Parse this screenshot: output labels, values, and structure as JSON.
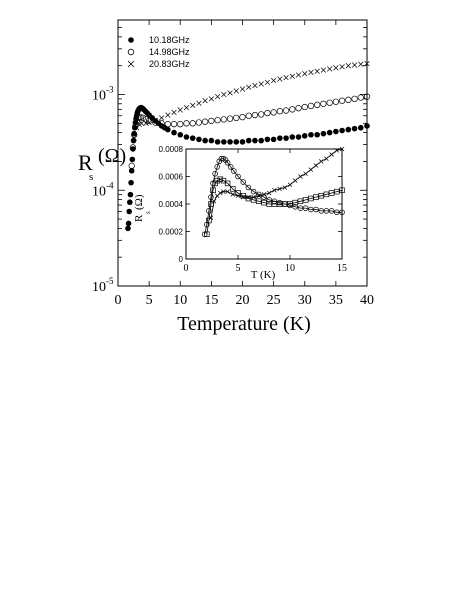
{
  "chart_data": [
    {
      "type": "scatter",
      "xlabel": "Temperature (K)",
      "ylabel": {
        "main": "R",
        "sub": "s",
        "unit": "(Ω)"
      },
      "xlim": [
        0,
        40
      ],
      "ylim": [
        1e-05,
        0.006
      ],
      "y_scale": "log",
      "xticks": [
        0,
        5,
        10,
        15,
        20,
        25,
        30,
        35,
        40
      ],
      "yticks": [
        {
          "value": 1e-05,
          "base": "10",
          "exp": "-5"
        },
        {
          "value": 0.0001,
          "base": "10",
          "exp": "-4"
        },
        {
          "value": 0.001,
          "base": "10",
          "exp": "-3"
        }
      ],
      "legend_position": "top-left",
      "series": [
        {
          "name": "10.18GHz",
          "marker": "filled-circle",
          "points": [
            [
              1.6,
              4e-05
            ],
            [
              1.7,
              4.5e-05
            ],
            [
              1.8,
              6e-05
            ],
            [
              1.9,
              7.5e-05
            ],
            [
              2.0,
              9e-05
            ],
            [
              2.1,
              0.00012
            ],
            [
              2.2,
              0.00016
            ],
            [
              2.3,
              0.00021
            ],
            [
              2.4,
              0.00027
            ],
            [
              2.5,
              0.00033
            ],
            [
              2.6,
              0.00039
            ],
            [
              2.7,
              0.00045
            ],
            [
              2.8,
              0.00051
            ],
            [
              2.9,
              0.00056
            ],
            [
              3.0,
              0.0006
            ],
            [
              3.1,
              0.00064
            ],
            [
              3.2,
              0.00067
            ],
            [
              3.35,
              0.0007
            ],
            [
              3.5,
              0.00072
            ],
            [
              3.7,
              0.00073
            ],
            [
              3.9,
              0.00072
            ],
            [
              4.1,
              0.0007
            ],
            [
              4.4,
              0.00067
            ],
            [
              4.7,
              0.00064
            ],
            [
              5.0,
              0.00061
            ],
            [
              5.5,
              0.00057
            ],
            [
              6,
              0.00053
            ],
            [
              6.5,
              0.0005
            ],
            [
              7,
              0.00047
            ],
            [
              7.5,
              0.00045
            ],
            [
              8,
              0.00043
            ],
            [
              9,
              0.0004
            ],
            [
              10,
              0.00038
            ],
            [
              11,
              0.00036
            ],
            [
              12,
              0.00035
            ],
            [
              13,
              0.00034
            ],
            [
              14,
              0.00033
            ],
            [
              15,
              0.00033
            ],
            [
              16,
              0.00032
            ],
            [
              17,
              0.00032
            ],
            [
              18,
              0.00032
            ],
            [
              19,
              0.00032
            ],
            [
              20,
              0.00032
            ],
            [
              21,
              0.00033
            ],
            [
              22,
              0.00033
            ],
            [
              23,
              0.00033
            ],
            [
              24,
              0.00034
            ],
            [
              25,
              0.00034
            ],
            [
              26,
              0.00035
            ],
            [
              27,
              0.00035
            ],
            [
              28,
              0.00036
            ],
            [
              29,
              0.00036
            ],
            [
              30,
              0.00037
            ],
            [
              31,
              0.00038
            ],
            [
              32,
              0.00038
            ],
            [
              33,
              0.00039
            ],
            [
              34,
              0.0004
            ],
            [
              35,
              0.00041
            ],
            [
              36,
              0.00042
            ],
            [
              37,
              0.00043
            ],
            [
              38,
              0.00044
            ],
            [
              39,
              0.00045
            ],
            [
              40,
              0.00047
            ]
          ]
        },
        {
          "name": "14.98GHz",
          "marker": "open-circle",
          "points": [
            [
              2.2,
              0.00018
            ],
            [
              2.4,
              0.00028
            ],
            [
              2.6,
              0.00038
            ],
            [
              2.8,
              0.00047
            ],
            [
              3.0,
              0.00053
            ],
            [
              3.3,
              0.00057
            ],
            [
              3.6,
              0.00058
            ],
            [
              4.0,
              0.00057
            ],
            [
              4.5,
              0.00055
            ],
            [
              5,
              0.00053
            ],
            [
              6,
              0.00051
            ],
            [
              7,
              0.0005
            ],
            [
              8,
              0.00049
            ],
            [
              9,
              0.00049
            ],
            [
              10,
              0.00049
            ],
            [
              11,
              0.0005
            ],
            [
              12,
              0.0005
            ],
            [
              13,
              0.00051
            ],
            [
              14,
              0.00052
            ],
            [
              15,
              0.00053
            ],
            [
              16,
              0.00054
            ],
            [
              17,
              0.00055
            ],
            [
              18,
              0.00056
            ],
            [
              19,
              0.00057
            ],
            [
              20,
              0.00058
            ],
            [
              21,
              0.0006
            ],
            [
              22,
              0.00061
            ],
            [
              23,
              0.00062
            ],
            [
              24,
              0.00064
            ],
            [
              25,
              0.00065
            ],
            [
              26,
              0.00067
            ],
            [
              27,
              0.00068
            ],
            [
              28,
              0.0007
            ],
            [
              29,
              0.00072
            ],
            [
              30,
              0.00074
            ],
            [
              31,
              0.00076
            ],
            [
              32,
              0.00078
            ],
            [
              33,
              0.0008
            ],
            [
              34,
              0.00082
            ],
            [
              35,
              0.00084
            ],
            [
              36,
              0.00086
            ],
            [
              37,
              0.00088
            ],
            [
              38,
              0.0009
            ],
            [
              39,
              0.00093
            ],
            [
              40,
              0.00095
            ]
          ]
        },
        {
          "name": "20.83GHz",
          "marker": "cross",
          "points": [
            [
              2.6,
              0.00035
            ],
            [
              3.0,
              0.00045
            ],
            [
              3.4,
              0.00049
            ],
            [
              3.8,
              0.0005
            ],
            [
              4.5,
              0.0005
            ],
            [
              5,
              0.00051
            ],
            [
              6,
              0.00054
            ],
            [
              7,
              0.00057
            ],
            [
              8,
              0.00061
            ],
            [
              9,
              0.00065
            ],
            [
              10,
              0.00069
            ],
            [
              11,
              0.00073
            ],
            [
              12,
              0.00077
            ],
            [
              13,
              0.00081
            ],
            [
              14,
              0.00086
            ],
            [
              15,
              0.0009
            ],
            [
              16,
              0.00095
            ],
            [
              17,
              0.001
            ],
            [
              18,
              0.00104
            ],
            [
              19,
              0.00109
            ],
            [
              20,
              0.00114
            ],
            [
              21,
              0.00119
            ],
            [
              22,
              0.00124
            ],
            [
              23,
              0.00129
            ],
            [
              24,
              0.00134
            ],
            [
              25,
              0.0014
            ],
            [
              26,
              0.00145
            ],
            [
              27,
              0.0015
            ],
            [
              28,
              0.00155
            ],
            [
              29,
              0.0016
            ],
            [
              30,
              0.00165
            ],
            [
              31,
              0.0017
            ],
            [
              32,
              0.00175
            ],
            [
              33,
              0.0018
            ],
            [
              34,
              0.00185
            ],
            [
              35,
              0.0019
            ],
            [
              36,
              0.00195
            ],
            [
              37,
              0.002
            ],
            [
              38,
              0.00203
            ],
            [
              39,
              0.00207
            ],
            [
              40,
              0.0021
            ]
          ]
        }
      ]
    },
    {
      "type": "scatter",
      "xlabel": "T (K)",
      "ylabel": {
        "main": "R",
        "sub": "s",
        "unit": "(Ω)"
      },
      "xlim": [
        0,
        15
      ],
      "ylim": [
        0,
        0.0008
      ],
      "xticks": [
        "0",
        "5",
        "10",
        "15"
      ],
      "yticks": [
        "0",
        "0.0002",
        "0.0004",
        "0.0006",
        "0.0008"
      ],
      "series": [
        {
          "marker": "open-circle",
          "fit_line": true,
          "points": [
            [
              1.8,
              0.00018
            ],
            [
              2.0,
              0.00025
            ],
            [
              2.2,
              0.00035
            ],
            [
              2.4,
              0.00045
            ],
            [
              2.6,
              0.00055
            ],
            [
              2.8,
              0.00062
            ],
            [
              3.0,
              0.00067
            ],
            [
              3.2,
              0.00071
            ],
            [
              3.4,
              0.00073
            ],
            [
              3.6,
              0.00073
            ],
            [
              3.8,
              0.00072
            ],
            [
              4.0,
              0.0007
            ],
            [
              4.3,
              0.00067
            ],
            [
              4.6,
              0.00064
            ],
            [
              5,
              0.0006
            ],
            [
              5.5,
              0.00056
            ],
            [
              6,
              0.00052
            ],
            [
              6.5,
              0.00049
            ],
            [
              7,
              0.00047
            ],
            [
              7.5,
              0.00045
            ],
            [
              8,
              0.00043
            ],
            [
              8.5,
              0.00042
            ],
            [
              9,
              0.00041
            ],
            [
              9.5,
              0.0004
            ],
            [
              10,
              0.00039
            ],
            [
              10.5,
              0.00038
            ],
            [
              11,
              0.00037
            ],
            [
              11.5,
              0.00037
            ],
            [
              12,
              0.00036
            ],
            [
              12.5,
              0.00036
            ],
            [
              13,
              0.00035
            ],
            [
              13.5,
              0.00035
            ],
            [
              14,
              0.00035
            ],
            [
              14.5,
              0.00034
            ],
            [
              15,
              0.00034
            ]
          ]
        },
        {
          "marker": "open-square",
          "fit_line": true,
          "points": [
            [
              2.0,
              0.00018
            ],
            [
              2.2,
              0.00028
            ],
            [
              2.4,
              0.0004
            ],
            [
              2.6,
              0.0005
            ],
            [
              2.8,
              0.00055
            ],
            [
              3.0,
              0.00057
            ],
            [
              3.3,
              0.00058
            ],
            [
              3.6,
              0.00057
            ],
            [
              4,
              0.00055
            ],
            [
              4.5,
              0.00051
            ],
            [
              5,
              0.00048
            ],
            [
              5.5,
              0.00046
            ],
            [
              6,
              0.00044
            ],
            [
              6.5,
              0.00043
            ],
            [
              7,
              0.00042
            ],
            [
              7.5,
              0.00041
            ],
            [
              8,
              0.0004
            ],
            [
              8.5,
              0.0004
            ],
            [
              9,
              0.0004
            ],
            [
              9.5,
              0.0004
            ],
            [
              10,
              0.0004
            ],
            [
              10.5,
              0.00041
            ],
            [
              11,
              0.00042
            ],
            [
              11.5,
              0.00043
            ],
            [
              12,
              0.00044
            ],
            [
              12.5,
              0.00045
            ],
            [
              13,
              0.00046
            ],
            [
              13.5,
              0.00047
            ],
            [
              14,
              0.00048
            ],
            [
              14.5,
              0.00049
            ],
            [
              15,
              0.0005
            ]
          ]
        },
        {
          "marker": "cross",
          "fit_line": true,
          "points": [
            [
              2.4,
              0.0003
            ],
            [
              2.7,
              0.00042
            ],
            [
              3.0,
              0.00046
            ],
            [
              3.3,
              0.00048
            ],
            [
              3.6,
              0.00049
            ],
            [
              4,
              0.00049
            ],
            [
              4.5,
              0.00047
            ],
            [
              5,
              0.00046
            ],
            [
              5.5,
              0.00045
            ],
            [
              6,
              0.00045
            ],
            [
              6.5,
              0.00045
            ],
            [
              7,
              0.00046
            ],
            [
              7.5,
              0.00047
            ],
            [
              8,
              0.00048
            ],
            [
              8.5,
              0.0005
            ],
            [
              9,
              0.00051
            ],
            [
              9.5,
              0.00052
            ],
            [
              10,
              0.00054
            ],
            [
              10.5,
              0.00057
            ],
            [
              11,
              0.0006
            ],
            [
              11.5,
              0.00062
            ],
            [
              12,
              0.00065
            ],
            [
              12.5,
              0.00068
            ],
            [
              13,
              0.00071
            ],
            [
              13.5,
              0.00073
            ],
            [
              14,
              0.00076
            ],
            [
              14.5,
              0.00079
            ],
            [
              15,
              0.0008
            ]
          ]
        }
      ]
    }
  ]
}
